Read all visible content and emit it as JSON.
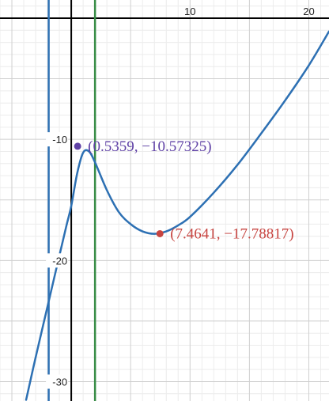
{
  "chart_data": {
    "type": "line",
    "title": "",
    "xlabel": "",
    "ylabel": "",
    "xlim": [
      -6,
      21.7
    ],
    "ylim": [
      -31.6,
      1.5
    ],
    "grid": true,
    "x_ticks": [
      10,
      20
    ],
    "y_ticks": [
      -10,
      -20,
      -30
    ],
    "x_tick_labels": [
      "10",
      "20"
    ],
    "y_tick_labels": [
      "-10",
      "-20",
      "-30"
    ],
    "series": [
      {
        "color": "#2d70b3",
        "points": [
          [
            -3.8,
            -31.5
          ],
          [
            -3,
            -28.0
          ],
          [
            -2,
            -23.8
          ],
          [
            -1,
            -19.6
          ],
          [
            -0.4,
            -17.1
          ],
          [
            0,
            -15.5
          ],
          [
            0.5,
            -12.8
          ],
          [
            1,
            -11.1
          ],
          [
            1.5,
            -11.0
          ],
          [
            2,
            -11.9
          ],
          [
            3,
            -14.2
          ],
          [
            4,
            -16.0
          ],
          [
            5,
            -17.0
          ],
          [
            6,
            -17.6
          ],
          [
            7,
            -17.8
          ],
          [
            8,
            -17.6
          ],
          [
            9,
            -17.1
          ],
          [
            10,
            -16.4
          ],
          [
            12,
            -14.4
          ],
          [
            14,
            -12.1
          ],
          [
            16,
            -9.5
          ],
          [
            18,
            -6.8
          ],
          [
            20,
            -3.9
          ],
          [
            21.7,
            -1.1
          ]
        ]
      }
    ],
    "vertical_lines": [
      {
        "x": -1.9,
        "color": "#2d70b3"
      },
      {
        "x": 2.0,
        "color": "#388c46"
      }
    ],
    "points": [
      {
        "x": 0.5359,
        "y": -10.57325,
        "label": "(0.5359, −10.57325)",
        "color": "#6042a6"
      },
      {
        "x": 7.4641,
        "y": -17.78817,
        "label": "(7.4641, −17.78817)",
        "color": "#c74440"
      }
    ]
  }
}
